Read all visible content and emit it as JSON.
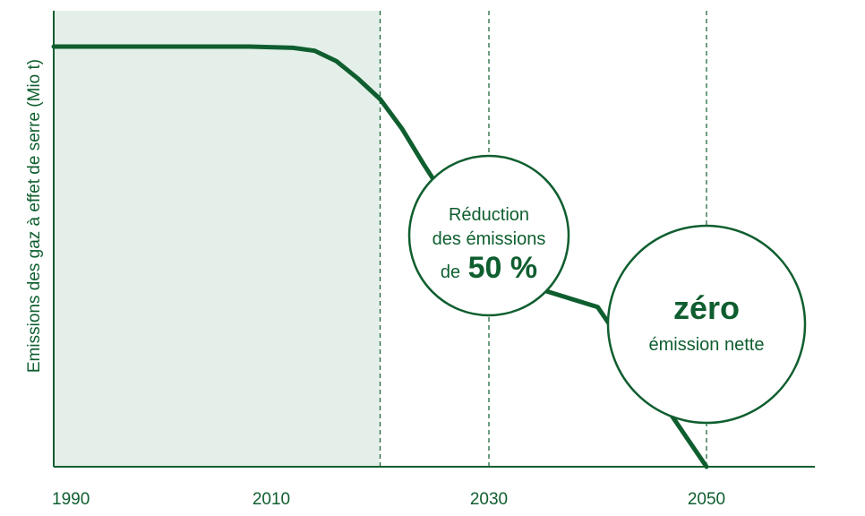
{
  "colors": {
    "primary": "#0f5e2f",
    "shade": "#e5efea",
    "background": "#ffffff"
  },
  "chart_data": {
    "type": "line",
    "ylabel": "Emissions des gaz à effet de serre (Mio t)",
    "xlim": [
      1990,
      2056
    ],
    "ylim": [
      0,
      100
    ],
    "x_ticks": [
      {
        "value": 1990,
        "label": "1990"
      },
      {
        "value": 2010,
        "label": "2010"
      },
      {
        "value": 2030,
        "label": "2030"
      },
      {
        "value": 2050,
        "label": "2050"
      }
    ],
    "shaded_range": [
      1990,
      2020
    ],
    "dashed_markers": [
      2020,
      2030,
      2050
    ],
    "series": [
      {
        "points": [
          [
            1990,
            100
          ],
          [
            2008,
            100
          ],
          [
            2012,
            99.7
          ],
          [
            2014,
            99
          ],
          [
            2016,
            96.5
          ],
          [
            2018,
            92.3
          ],
          [
            2020,
            87.5
          ],
          [
            2022,
            80.5
          ],
          [
            2024,
            72
          ],
          [
            2025.5,
            66
          ],
          [
            2028.5,
            50
          ],
          [
            2035,
            42
          ],
          [
            2040,
            38
          ],
          [
            2050,
            0
          ]
        ]
      }
    ],
    "annotations": [
      {
        "x": 2030,
        "y": 50,
        "lines": [
          "Réduction",
          "des émissions"
        ],
        "prefix": "de",
        "emphasis": "50 %"
      },
      {
        "x": 2050,
        "y": 0,
        "emphasis": "zéro",
        "caption": "émission nette"
      }
    ]
  }
}
